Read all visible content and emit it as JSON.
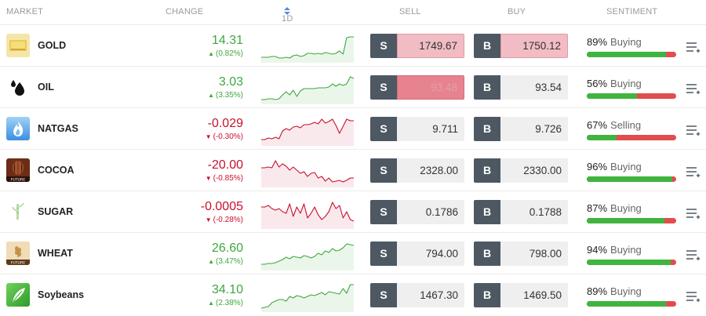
{
  "header": {
    "market": "MARKET",
    "change": "CHANGE",
    "period": "1D",
    "sell": "SELL",
    "buy": "BUY",
    "sentiment": "SENTIMENT"
  },
  "colors": {
    "up": "#3fa73f",
    "down": "#c8102e",
    "trade_letter_bg": "#4e5863",
    "sentiment_buy": "#3fb43f",
    "sentiment_sell": "#e14d4d"
  },
  "rows": [
    {
      "name": "GOLD",
      "icon": "gold-bar-icon",
      "change": "14.31",
      "change_pct": "(0.82%)",
      "direction": "up",
      "sell_label": "S",
      "sell": "1749.67",
      "sell_state": "flash-light",
      "buy_label": "B",
      "buy": "1750.12",
      "buy_state": "flash-light",
      "sentiment_pct": "89%",
      "sentiment_dir": "Buying",
      "sentiment_fill": 0.89,
      "spark": [
        35,
        35,
        35,
        34,
        34,
        36,
        36,
        35,
        36,
        33,
        32,
        34,
        33,
        30,
        30,
        31,
        30,
        31,
        29,
        30,
        31,
        30,
        27,
        31,
        10,
        9,
        9
      ]
    },
    {
      "name": "OIL",
      "icon": "oil-drop-icon",
      "change": "3.03",
      "change_pct": "(3.35%)",
      "direction": "up",
      "sell_label": "S",
      "sell": "93.48",
      "sell_state": "flash-strong",
      "buy_label": "B",
      "buy": "93.54",
      "buy_state": "normal",
      "sentiment_pct": "56%",
      "sentiment_dir": "Buying",
      "sentiment_fill": 0.56,
      "spark": [
        36,
        36,
        35,
        35,
        36,
        35,
        30,
        26,
        30,
        24,
        32,
        25,
        22,
        22,
        22,
        22,
        21,
        21,
        21,
        20,
        16,
        19,
        16,
        18,
        16,
        7,
        9
      ]
    },
    {
      "name": "NATGAS",
      "icon": "flame-icon",
      "change": "-0.029",
      "change_pct": "(-0.30%)",
      "direction": "down",
      "sell_label": "S",
      "sell": "9.711",
      "sell_state": "normal",
      "buy_label": "B",
      "buy": "9.726",
      "buy_state": "normal",
      "sentiment_pct": "67%",
      "sentiment_dir": "Selling",
      "sentiment_fill": 0.33,
      "spark": [
        34,
        34,
        32,
        33,
        31,
        33,
        23,
        20,
        22,
        18,
        17,
        19,
        15,
        15,
        14,
        12,
        14,
        8,
        13,
        11,
        8,
        16,
        26,
        17,
        8,
        10,
        10
      ]
    },
    {
      "name": "COCOA",
      "icon": "cocoa-pod-icon",
      "change": "-20.00",
      "change_pct": "(-0.85%)",
      "direction": "down",
      "sell_label": "S",
      "sell": "2328.00",
      "sell_state": "normal",
      "buy_label": "B",
      "buy": "2330.00",
      "buy_state": "normal",
      "sentiment_pct": "96%",
      "sentiment_dir": "Buying",
      "sentiment_fill": 0.96,
      "spark": [
        17,
        17,
        16,
        17,
        8,
        16,
        12,
        15,
        20,
        16,
        20,
        24,
        22,
        28,
        24,
        23,
        30,
        28,
        34,
        30,
        35,
        34,
        33,
        35,
        33,
        30,
        30
      ]
    },
    {
      "name": "SUGAR",
      "icon": "sugar-cane-icon",
      "change": "-0.0005",
      "change_pct": "(-0.28%)",
      "direction": "down",
      "sell_label": "S",
      "sell": "0.1786",
      "sell_state": "normal",
      "buy_label": "B",
      "buy": "0.1788",
      "buy_state": "normal",
      "sentiment_pct": "87%",
      "sentiment_dir": "Buying",
      "sentiment_fill": 0.87,
      "spark": [
        14,
        14,
        12,
        16,
        18,
        16,
        20,
        22,
        10,
        26,
        14,
        22,
        10,
        28,
        22,
        14,
        24,
        30,
        26,
        20,
        8,
        16,
        12,
        28,
        20,
        30,
        32
      ]
    },
    {
      "name": "WHEAT",
      "icon": "wheat-icon",
      "change": "26.60",
      "change_pct": "(3.47%)",
      "direction": "up",
      "sell_label": "S",
      "sell": "794.00",
      "sell_state": "normal",
      "buy_label": "B",
      "buy": "798.00",
      "buy_state": "normal",
      "sentiment_pct": "94%",
      "sentiment_dir": "Buying",
      "sentiment_fill": 0.94,
      "spark": [
        34,
        34,
        33,
        33,
        32,
        30,
        28,
        25,
        27,
        24,
        25,
        26,
        23,
        24,
        26,
        24,
        20,
        22,
        17,
        19,
        14,
        17,
        16,
        13,
        8,
        9,
        10
      ]
    },
    {
      "name": "Soybeans",
      "icon": "soy-leaf-icon",
      "change": "34.10",
      "change_pct": "(2.38%)",
      "direction": "up",
      "sell_label": "S",
      "sell": "1467.30",
      "sell_state": "normal",
      "buy_label": "B",
      "buy": "1469.50",
      "buy_state": "normal",
      "sentiment_pct": "89%",
      "sentiment_dir": "Buying",
      "sentiment_fill": 0.89,
      "spark": [
        37,
        36,
        35,
        30,
        28,
        26,
        26,
        28,
        22,
        24,
        21,
        22,
        24,
        22,
        20,
        21,
        19,
        17,
        20,
        16,
        17,
        18,
        19,
        12,
        18,
        7,
        7
      ]
    }
  ]
}
